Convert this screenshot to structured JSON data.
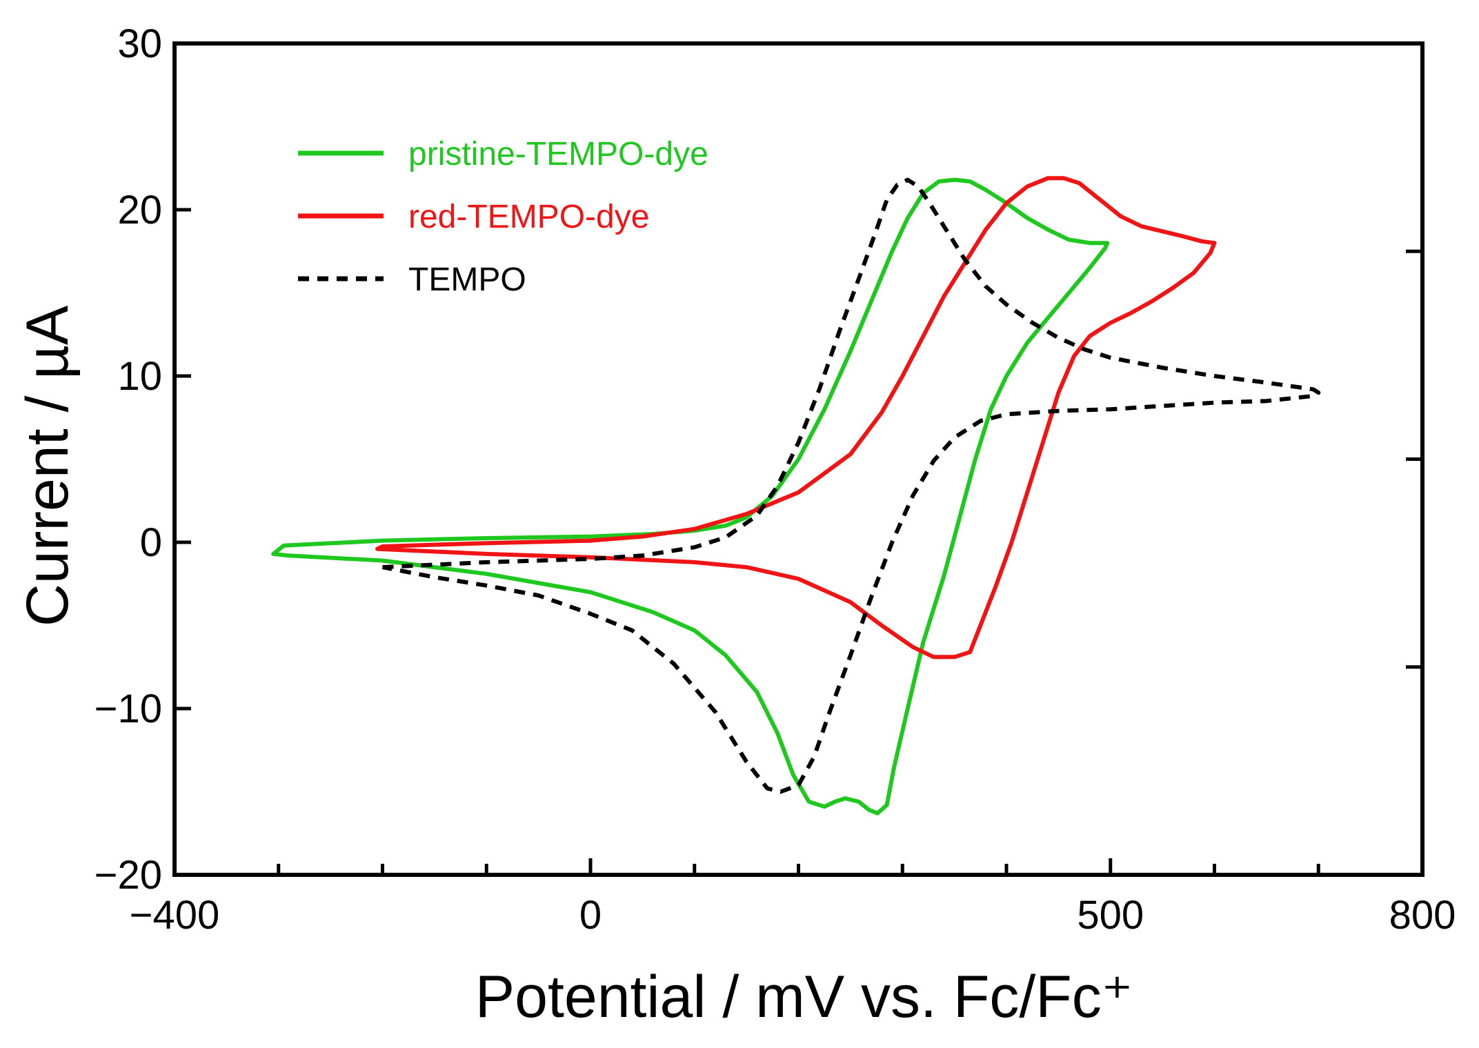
{
  "chart_data": {
    "type": "line",
    "xlabel": "Potential / mV vs. Fc/Fc⁺",
    "ylabel": "Current / µA",
    "xlim": [
      -400,
      800
    ],
    "ylim": [
      -20,
      30
    ],
    "x_ticks": [
      {
        "value": -400,
        "label": "−400"
      },
      {
        "value": 0,
        "label": "0"
      },
      {
        "value": 500,
        "label": "500"
      },
      {
        "value": 800,
        "label": "800"
      }
    ],
    "x_minor_ticks": [
      -300,
      -200,
      -100,
      100,
      200,
      300,
      400,
      600,
      700
    ],
    "y_ticks": [
      {
        "value": -20,
        "label": "−20"
      },
      {
        "value": -10,
        "label": "−10"
      },
      {
        "value": 0,
        "label": "0"
      },
      {
        "value": 10,
        "label": "10"
      },
      {
        "value": 20,
        "label": "20"
      },
      {
        "value": 30,
        "label": "30"
      }
    ],
    "right_ticks": [
      -7.5,
      5,
      17.5
    ],
    "legend_position": "top-left",
    "grid": false,
    "series": [
      {
        "name": "pristine-TEMPO-dye",
        "color": "#1ec81e",
        "dash": "solid",
        "points": [
          [
            -305,
            -0.7
          ],
          [
            -295,
            -0.2
          ],
          [
            -200,
            0.1
          ],
          [
            -100,
            0.25
          ],
          [
            0,
            0.35
          ],
          [
            60,
            0.5
          ],
          [
            100,
            0.7
          ],
          [
            130,
            1.0
          ],
          [
            150,
            1.5
          ],
          [
            175,
            2.8
          ],
          [
            200,
            5.0
          ],
          [
            225,
            8.0
          ],
          [
            250,
            11.5
          ],
          [
            270,
            14.5
          ],
          [
            290,
            17.5
          ],
          [
            305,
            19.5
          ],
          [
            320,
            21.0
          ],
          [
            335,
            21.7
          ],
          [
            350,
            21.8
          ],
          [
            365,
            21.7
          ],
          [
            380,
            21.2
          ],
          [
            400,
            20.4
          ],
          [
            420,
            19.5
          ],
          [
            440,
            18.8
          ],
          [
            460,
            18.2
          ],
          [
            480,
            18.0
          ],
          [
            497,
            18.0
          ],
          [
            495,
            17.7
          ],
          [
            480,
            16.5
          ],
          [
            460,
            15.0
          ],
          [
            440,
            13.5
          ],
          [
            420,
            12.0
          ],
          [
            400,
            10.0
          ],
          [
            385,
            8.0
          ],
          [
            370,
            5.0
          ],
          [
            355,
            1.5
          ],
          [
            340,
            -2.0
          ],
          [
            320,
            -6.0
          ],
          [
            305,
            -10.0
          ],
          [
            292,
            -13.5
          ],
          [
            285,
            -15.8
          ],
          [
            276,
            -16.3
          ],
          [
            268,
            -16.1
          ],
          [
            258,
            -15.6
          ],
          [
            245,
            -15.4
          ],
          [
            235,
            -15.6
          ],
          [
            225,
            -15.9
          ],
          [
            210,
            -15.6
          ],
          [
            195,
            -14.0
          ],
          [
            180,
            -11.5
          ],
          [
            160,
            -9.0
          ],
          [
            130,
            -6.8
          ],
          [
            100,
            -5.3
          ],
          [
            60,
            -4.2
          ],
          [
            0,
            -3.0
          ],
          [
            -100,
            -1.9
          ],
          [
            -200,
            -1.1
          ],
          [
            -290,
            -0.8
          ],
          [
            -305,
            -0.7
          ]
        ]
      },
      {
        "name": "red-TEMPO-dye",
        "color": "#f01414",
        "dash": "solid",
        "points": [
          [
            -205,
            -0.4
          ],
          [
            -200,
            -0.25
          ],
          [
            -100,
            -0.05
          ],
          [
            0,
            0.1
          ],
          [
            50,
            0.35
          ],
          [
            100,
            0.8
          ],
          [
            150,
            1.7
          ],
          [
            200,
            3.0
          ],
          [
            250,
            5.3
          ],
          [
            280,
            7.8
          ],
          [
            300,
            10.0
          ],
          [
            320,
            12.4
          ],
          [
            340,
            14.8
          ],
          [
            360,
            16.8
          ],
          [
            380,
            18.8
          ],
          [
            400,
            20.4
          ],
          [
            420,
            21.4
          ],
          [
            440,
            21.9
          ],
          [
            455,
            21.9
          ],
          [
            470,
            21.6
          ],
          [
            490,
            20.6
          ],
          [
            510,
            19.6
          ],
          [
            530,
            19.0
          ],
          [
            550,
            18.7
          ],
          [
            570,
            18.4
          ],
          [
            588,
            18.1
          ],
          [
            600,
            18.0
          ],
          [
            596,
            17.4
          ],
          [
            580,
            16.2
          ],
          [
            560,
            15.3
          ],
          [
            540,
            14.5
          ],
          [
            520,
            13.8
          ],
          [
            500,
            13.2
          ],
          [
            480,
            12.4
          ],
          [
            465,
            11.2
          ],
          [
            450,
            9.0
          ],
          [
            435,
            6.0
          ],
          [
            420,
            3.0
          ],
          [
            405,
            0.0
          ],
          [
            390,
            -2.6
          ],
          [
            375,
            -5.0
          ],
          [
            365,
            -6.6
          ],
          [
            350,
            -6.9
          ],
          [
            330,
            -6.9
          ],
          [
            310,
            -6.3
          ],
          [
            280,
            -5.0
          ],
          [
            250,
            -3.6
          ],
          [
            200,
            -2.2
          ],
          [
            150,
            -1.5
          ],
          [
            100,
            -1.2
          ],
          [
            0,
            -0.9
          ],
          [
            -100,
            -0.7
          ],
          [
            -205,
            -0.4
          ]
        ]
      },
      {
        "name": "TEMPO",
        "color": "#000000",
        "dash": "dashed",
        "points": [
          [
            -200,
            -1.5
          ],
          [
            -100,
            -1.2
          ],
          [
            0,
            -1.0
          ],
          [
            50,
            -0.8
          ],
          [
            100,
            -0.3
          ],
          [
            130,
            0.3
          ],
          [
            160,
            1.6
          ],
          [
            180,
            3.4
          ],
          [
            200,
            6.0
          ],
          [
            220,
            9.2
          ],
          [
            240,
            12.8
          ],
          [
            260,
            16.2
          ],
          [
            275,
            18.8
          ],
          [
            285,
            20.6
          ],
          [
            295,
            21.5
          ],
          [
            305,
            21.8
          ],
          [
            315,
            21.4
          ],
          [
            325,
            20.5
          ],
          [
            340,
            19.0
          ],
          [
            360,
            17.0
          ],
          [
            380,
            15.4
          ],
          [
            400,
            14.3
          ],
          [
            425,
            13.2
          ],
          [
            450,
            12.3
          ],
          [
            475,
            11.6
          ],
          [
            500,
            11.1
          ],
          [
            550,
            10.5
          ],
          [
            600,
            10.0
          ],
          [
            650,
            9.6
          ],
          [
            695,
            9.2
          ],
          [
            700,
            9.0
          ],
          [
            695,
            8.8
          ],
          [
            650,
            8.5
          ],
          [
            600,
            8.4
          ],
          [
            550,
            8.2
          ],
          [
            500,
            8.0
          ],
          [
            450,
            7.9
          ],
          [
            400,
            7.7
          ],
          [
            375,
            7.3
          ],
          [
            350,
            6.3
          ],
          [
            330,
            4.9
          ],
          [
            310,
            2.8
          ],
          [
            290,
            0.0
          ],
          [
            270,
            -3.3
          ],
          [
            250,
            -6.8
          ],
          [
            230,
            -10.2
          ],
          [
            215,
            -12.9
          ],
          [
            200,
            -14.6
          ],
          [
            183,
            -15.0
          ],
          [
            170,
            -14.8
          ],
          [
            150,
            -13.2
          ],
          [
            120,
            -10.2
          ],
          [
            80,
            -7.3
          ],
          [
            40,
            -5.3
          ],
          [
            0,
            -4.3
          ],
          [
            -50,
            -3.2
          ],
          [
            -100,
            -2.6
          ],
          [
            -150,
            -2.1
          ],
          [
            -200,
            -1.5
          ]
        ]
      }
    ]
  }
}
